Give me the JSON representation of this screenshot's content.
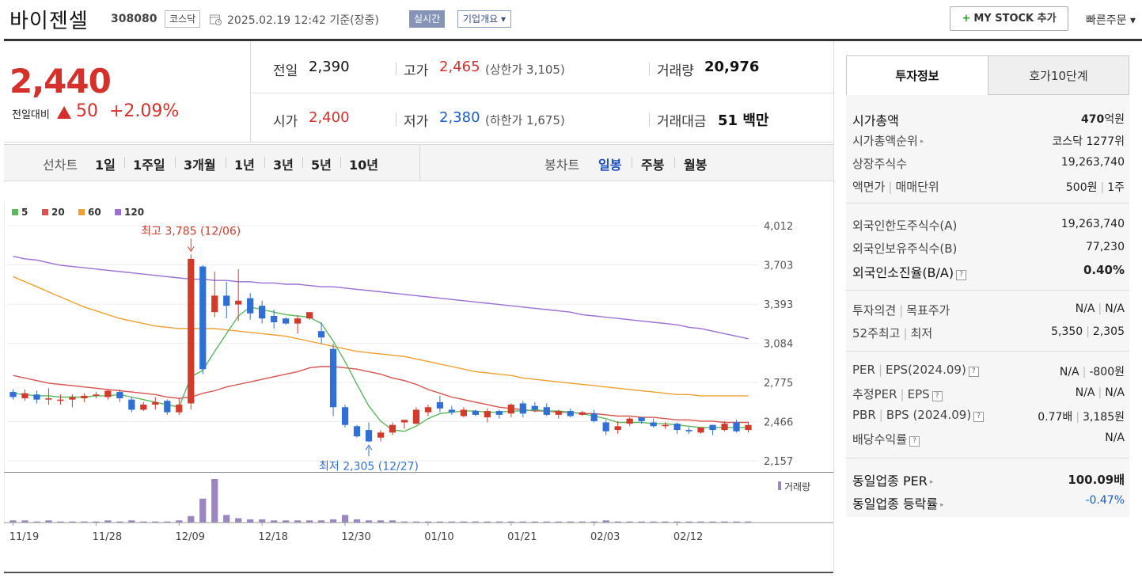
{
  "header": {
    "name": "바이젠셀",
    "code": "308080",
    "market": "코스닥",
    "datetime": "2025.02.19 12:42 기준(장중)",
    "realtime_label": "실시간",
    "company_info_label": "기업개요 ▾",
    "mystock_label": "MY STOCK 추가",
    "quick_order_label": "빠른주문 ▾"
  },
  "price": {
    "current": "2,440",
    "change_label": "전일대비",
    "change": "50",
    "change_pct": "+2.09%"
  },
  "quote": {
    "prev_close_label": "전일",
    "prev_close": "2,390",
    "high_label": "고가",
    "high": "2,465",
    "upper_limit": "(상한가 3,105)",
    "volume_label": "거래량",
    "volume": "20,976",
    "open_label": "시가",
    "open": "2,400",
    "low_label": "저가",
    "low": "2,380",
    "lower_limit": "(하한가 1,675)",
    "trade_value_label": "거래대금",
    "trade_value": "51 백만"
  },
  "period_bar": {
    "line_chart_label": "선차트",
    "line_periods": [
      "1일",
      "1주일",
      "3개월",
      "1년",
      "3년",
      "5년",
      "10년"
    ],
    "candle_chart_label": "봉차트",
    "candle_periods": [
      "일봉",
      "주봉",
      "월봉"
    ],
    "active_candle": "일봉"
  },
  "chart_data": {
    "type": "candlestick",
    "legend": [
      {
        "name": "5",
        "color": "#5cb85c"
      },
      {
        "name": "20",
        "color": "#d9534f"
      },
      {
        "name": "60",
        "color": "#f0a030"
      },
      {
        "name": "120",
        "color": "#9b6fd6"
      }
    ],
    "y_ticks": [
      "4,012",
      "3,703",
      "3,393",
      "3,084",
      "2,775",
      "2,466",
      "2,157"
    ],
    "ylim": [
      2157,
      4012
    ],
    "x_ticks": [
      "11/19",
      "11/28",
      "12/09",
      "12/18",
      "12/30",
      "01/10",
      "01/21",
      "02/03",
      "02/12"
    ],
    "high_annotation": "최고 3,785 (12/06)",
    "low_annotation": "최저 2,305 (12/27)",
    "volume_label": "거래량",
    "candles": [
      [
        2700,
        2660,
        2720,
        2640
      ],
      [
        2650,
        2690,
        2720,
        2630
      ],
      [
        2680,
        2640,
        2710,
        2610
      ],
      [
        2640,
        2650,
        2730,
        2600
      ],
      [
        2630,
        2640,
        2680,
        2600
      ],
      [
        2640,
        2660,
        2680,
        2580
      ],
      [
        2650,
        2670,
        2690,
        2620
      ],
      [
        2670,
        2680,
        2700,
        2650
      ],
      [
        2660,
        2710,
        2720,
        2640
      ],
      [
        2700,
        2650,
        2720,
        2620
      ],
      [
        2640,
        2560,
        2660,
        2540
      ],
      [
        2560,
        2600,
        2620,
        2550
      ],
      [
        2600,
        2620,
        2660,
        2560
      ],
      [
        2630,
        2540,
        2640,
        2520
      ],
      [
        2540,
        2600,
        2650,
        2520
      ],
      [
        2610,
        3750,
        3785,
        2560
      ],
      [
        3690,
        2880,
        3700,
        2840
      ],
      [
        3330,
        3460,
        3650,
        3290
      ],
      [
        3460,
        3380,
        3570,
        3280
      ],
      [
        3390,
        3420,
        3670,
        3260
      ],
      [
        3440,
        3320,
        3480,
        3270
      ],
      [
        3380,
        3280,
        3420,
        3240
      ],
      [
        3300,
        3250,
        3350,
        3200
      ],
      [
        3280,
        3240,
        3290,
        3230
      ],
      [
        3240,
        3280,
        3300,
        3160
      ],
      [
        3280,
        3330,
        3320,
        3270
      ],
      [
        3180,
        3130,
        3250,
        3080
      ],
      [
        3040,
        2580,
        3080,
        2510
      ],
      [
        2580,
        2440,
        2600,
        2420
      ],
      [
        2430,
        2350,
        2440,
        2340
      ],
      [
        2400,
        2310,
        2460,
        2305
      ],
      [
        2340,
        2380,
        2400,
        2310
      ],
      [
        2380,
        2440,
        2460,
        2360
      ],
      [
        2460,
        2480,
        2480,
        2410
      ],
      [
        2450,
        2560,
        2580,
        2440
      ],
      [
        2540,
        2580,
        2600,
        2510
      ],
      [
        2620,
        2570,
        2670,
        2540
      ],
      [
        2560,
        2540,
        2590,
        2520
      ],
      [
        2510,
        2560,
        2580,
        2500
      ],
      [
        2550,
        2520,
        2560,
        2510
      ],
      [
        2500,
        2550,
        2570,
        2460
      ],
      [
        2550,
        2520,
        2560,
        2490
      ],
      [
        2530,
        2600,
        2610,
        2500
      ],
      [
        2610,
        2530,
        2630,
        2500
      ],
      [
        2590,
        2560,
        2620,
        2540
      ],
      [
        2580,
        2520,
        2610,
        2510
      ],
      [
        2520,
        2550,
        2560,
        2490
      ],
      [
        2550,
        2510,
        2570,
        2500
      ],
      [
        2520,
        2540,
        2550,
        2510
      ],
      [
        2530,
        2470,
        2560,
        2460
      ],
      [
        2460,
        2390,
        2480,
        2360
      ],
      [
        2400,
        2430,
        2470,
        2370
      ],
      [
        2450,
        2490,
        2500,
        2430
      ],
      [
        2500,
        2470,
        2500,
        2450
      ],
      [
        2460,
        2430,
        2490,
        2420
      ],
      [
        2430,
        2440,
        2460,
        2410
      ],
      [
        2450,
        2400,
        2460,
        2370
      ],
      [
        2400,
        2390,
        2420,
        2370
      ],
      [
        2380,
        2420,
        2420,
        2370
      ],
      [
        2440,
        2400,
        2440,
        2360
      ],
      [
        2400,
        2450,
        2470,
        2390
      ],
      [
        2460,
        2390,
        2480,
        2380
      ],
      [
        2400,
        2440,
        2465,
        2380
      ]
    ],
    "ma5": [
      2690,
      2680,
      2670,
      2670,
      2660,
      2660,
      2660,
      2670,
      2670,
      2680,
      2660,
      2640,
      2620,
      2600,
      2580,
      2820,
      2870,
      3020,
      3160,
      3300,
      3370,
      3350,
      3330,
      3310,
      3300,
      3290,
      3240,
      3100,
      2940,
      2760,
      2590,
      2470,
      2400,
      2390,
      2430,
      2490,
      2530,
      2540,
      2550,
      2550,
      2540,
      2540,
      2550,
      2550,
      2560,
      2550,
      2550,
      2540,
      2530,
      2510,
      2490,
      2460,
      2460,
      2460,
      2450,
      2450,
      2440,
      2430,
      2420,
      2420,
      2420,
      2420,
      2420
    ],
    "ma20": [
      2830,
      2810,
      2790,
      2770,
      2760,
      2750,
      2740,
      2730,
      2720,
      2710,
      2700,
      2690,
      2680,
      2660,
      2650,
      2660,
      2690,
      2710,
      2740,
      2760,
      2780,
      2800,
      2820,
      2840,
      2860,
      2890,
      2900,
      2900,
      2890,
      2880,
      2860,
      2840,
      2810,
      2790,
      2760,
      2720,
      2690,
      2660,
      2640,
      2620,
      2600,
      2580,
      2570,
      2560,
      2550,
      2550,
      2540,
      2540,
      2530,
      2530,
      2520,
      2510,
      2510,
      2500,
      2500,
      2490,
      2480,
      2480,
      2470,
      2470,
      2460,
      2460,
      2460
    ],
    "ma60": [
      3610,
      3570,
      3530,
      3490,
      3450,
      3410,
      3370,
      3340,
      3310,
      3280,
      3260,
      3240,
      3220,
      3210,
      3200,
      3200,
      3200,
      3200,
      3190,
      3180,
      3170,
      3160,
      3150,
      3140,
      3120,
      3100,
      3080,
      3060,
      3040,
      3020,
      3010,
      3000,
      2990,
      2980,
      2960,
      2940,
      2920,
      2900,
      2880,
      2860,
      2850,
      2840,
      2830,
      2810,
      2800,
      2790,
      2780,
      2770,
      2760,
      2750,
      2740,
      2730,
      2720,
      2710,
      2700,
      2690,
      2680,
      2680,
      2670,
      2670,
      2670,
      2670,
      2670
    ],
    "ma120": [
      3770,
      3750,
      3740,
      3720,
      3700,
      3690,
      3680,
      3670,
      3660,
      3650,
      3640,
      3630,
      3620,
      3610,
      3600,
      3590,
      3590,
      3580,
      3580,
      3570,
      3570,
      3560,
      3560,
      3550,
      3550,
      3540,
      3530,
      3530,
      3520,
      3510,
      3500,
      3490,
      3480,
      3470,
      3460,
      3450,
      3440,
      3430,
      3420,
      3410,
      3400,
      3390,
      3380,
      3370,
      3360,
      3350,
      3340,
      3330,
      3310,
      3300,
      3290,
      3280,
      3270,
      3260,
      3250,
      3240,
      3230,
      3210,
      3200,
      3180,
      3160,
      3140,
      3120
    ],
    "volume": [
      2,
      2,
      1,
      2,
      1,
      1,
      1,
      1,
      2,
      1,
      2,
      1,
      1,
      1,
      2,
      6,
      22,
      40,
      7,
      4,
      3,
      3,
      2,
      2,
      2,
      2,
      2,
      3,
      7,
      3,
      2,
      2,
      2,
      1,
      1,
      1,
      1,
      1,
      1,
      1,
      1,
      1,
      1,
      1,
      1,
      1,
      1,
      1,
      1,
      1,
      2,
      1,
      1,
      1,
      1,
      1,
      1,
      1,
      1,
      1,
      1,
      1,
      1
    ]
  },
  "side": {
    "tab_invest": "투자정보",
    "tab_orderbook": "호가10단계",
    "market_cap_label": "시가총액",
    "market_cap_num": "470",
    "market_cap_unit": "억원",
    "market_cap_rank_label": "시가총액순위",
    "market_cap_rank": "코스닥 1277위",
    "shares_label": "상장주식수",
    "shares": "19,263,740",
    "par_label": "액면가",
    "unit_label": "매매단위",
    "par": "500원",
    "unit": "1주",
    "foreign_limit_label": "외국인한도주식수(A)",
    "foreign_limit": "19,263,740",
    "foreign_hold_label": "외국인보유주식수(B)",
    "foreign_hold": "77,230",
    "foreign_ratio_label": "외국인소진율(B/A)",
    "foreign_ratio": "0.40%",
    "opinion_label": "투자의견",
    "target_label": "목표주가",
    "opinion": "N/A",
    "target": "N/A",
    "w52_high_label": "52주최고",
    "w52_low_label": "최저",
    "w52_high": "5,350",
    "w52_low": "2,305",
    "per_label": "PER",
    "eps_label": "EPS(2024.09)",
    "per": "N/A",
    "eps": "-800원",
    "est_per_label": "추정PER",
    "est_eps_label": "EPS",
    "est_per": "N/A",
    "est_eps": "N/A",
    "pbr_label": "PBR",
    "bps_label": "BPS (2024.09)",
    "pbr": "0.77배",
    "bps": "3,185원",
    "div_label": "배당수익률",
    "div": "N/A",
    "sector_per_label": "동일업종 PER",
    "sector_per": "100.09배",
    "sector_chg_label": "동일업종 등락률",
    "sector_chg": "-0.47%"
  }
}
